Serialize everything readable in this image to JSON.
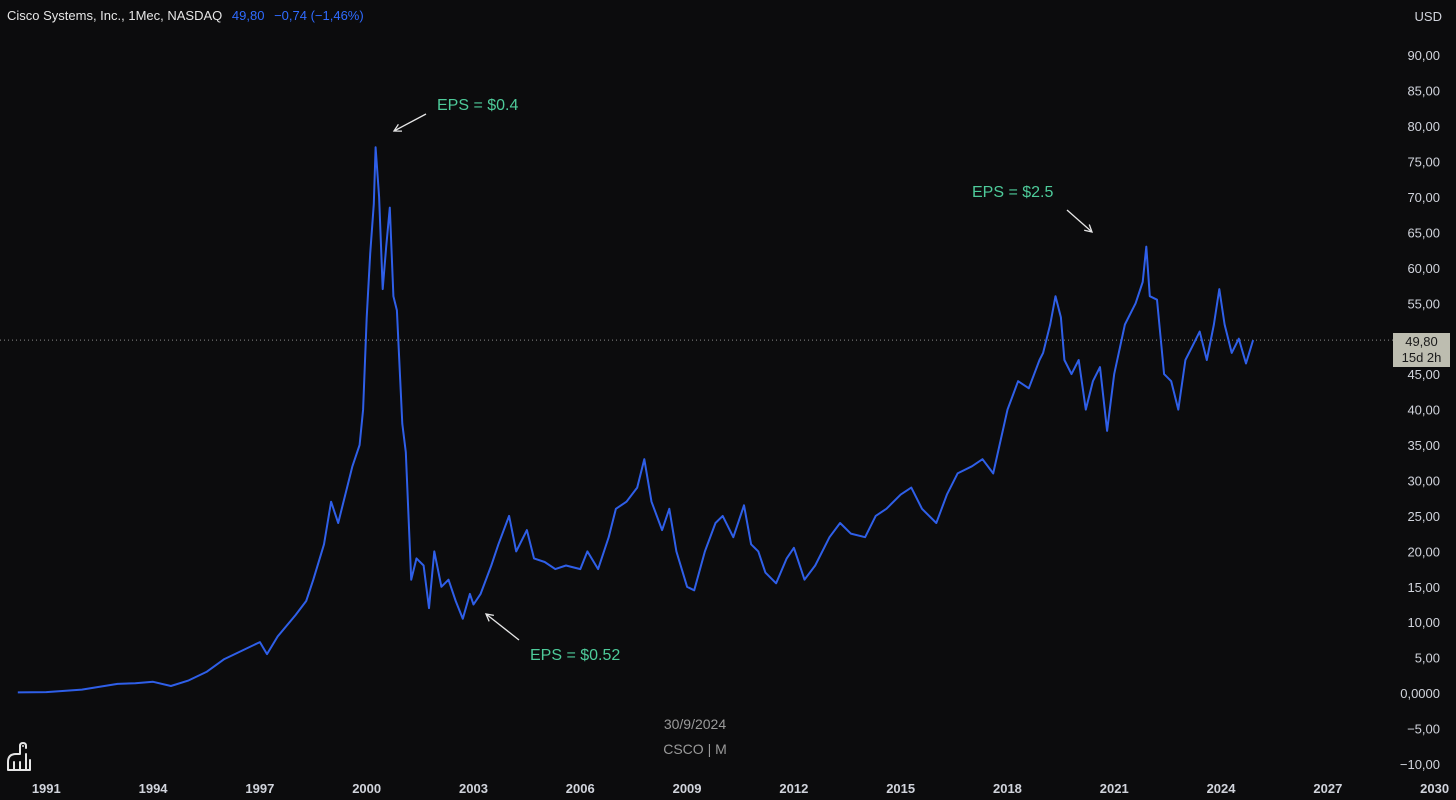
{
  "legend": {
    "symbol": "Cisco Systems, Inc., 1Mec, NASDAQ",
    "last": "49,80",
    "change": "−0,74 (−1,46%)"
  },
  "currency": "USD",
  "price_tag": {
    "value": "49,80",
    "countdown": "15d 2h"
  },
  "watermark": {
    "date": "30/9/2024",
    "symbol": "CSCO | M"
  },
  "colors": {
    "line": "#2f5fe8",
    "annotation": "#4ecb9a",
    "background": "#0c0c0d",
    "axis_text": "#d1d4dc"
  },
  "chart_data": {
    "type": "line",
    "title": "",
    "xlabel": "",
    "ylabel": "",
    "x_ticks": [
      "1991",
      "1994",
      "1997",
      "2000",
      "2003",
      "2006",
      "2009",
      "2012",
      "2015",
      "2018",
      "2021",
      "2024",
      "2027",
      "2030"
    ],
    "y_ticks": [
      "90,00",
      "85,00",
      "80,00",
      "75,00",
      "70,00",
      "65,00",
      "60,00",
      "55,00",
      "50,00",
      "45,00",
      "40,00",
      "35,00",
      "30,00",
      "25,00",
      "20,00",
      "15,00",
      "10,00",
      "5,00",
      "0,0000",
      "−5,00",
      "−10,00"
    ],
    "ylim": [
      -10,
      92
    ],
    "xlim": [
      1989.7,
      2030.6
    ],
    "last_value": 49.8,
    "series": [
      {
        "points": [
          [
            1990.2,
            0.1
          ],
          [
            1991.0,
            0.15
          ],
          [
            1992.0,
            0.5
          ],
          [
            1993.0,
            1.3
          ],
          [
            1993.5,
            1.4
          ],
          [
            1994.0,
            1.6
          ],
          [
            1994.5,
            1.0
          ],
          [
            1995.0,
            1.8
          ],
          [
            1995.5,
            3.0
          ],
          [
            1996.0,
            4.8
          ],
          [
            1996.5,
            6.0
          ],
          [
            1997.0,
            7.2
          ],
          [
            1997.2,
            5.5
          ],
          [
            1997.5,
            8.0
          ],
          [
            1998.0,
            11.0
          ],
          [
            1998.3,
            13.0
          ],
          [
            1998.5,
            16.0
          ],
          [
            1998.8,
            21.0
          ],
          [
            1999.0,
            27.0
          ],
          [
            1999.2,
            24.0
          ],
          [
            1999.4,
            28.0
          ],
          [
            1999.6,
            32.0
          ],
          [
            1999.8,
            35.0
          ],
          [
            1999.9,
            40.0
          ],
          [
            2000.0,
            53.0
          ],
          [
            2000.1,
            62.0
          ],
          [
            2000.2,
            69.0
          ],
          [
            2000.25,
            77.0
          ],
          [
            2000.35,
            70.0
          ],
          [
            2000.45,
            57.0
          ],
          [
            2000.55,
            63.0
          ],
          [
            2000.65,
            68.5
          ],
          [
            2000.75,
            56.0
          ],
          [
            2000.85,
            54.0
          ],
          [
            2001.0,
            38.0
          ],
          [
            2001.1,
            34.0
          ],
          [
            2001.25,
            16.0
          ],
          [
            2001.4,
            19.0
          ],
          [
            2001.6,
            18.0
          ],
          [
            2001.75,
            12.0
          ],
          [
            2001.9,
            20.0
          ],
          [
            2002.1,
            15.0
          ],
          [
            2002.3,
            16.0
          ],
          [
            2002.5,
            13.0
          ],
          [
            2002.7,
            10.5
          ],
          [
            2002.9,
            14.0
          ],
          [
            2003.0,
            12.5
          ],
          [
            2003.2,
            14.0
          ],
          [
            2003.5,
            18.0
          ],
          [
            2003.7,
            21.0
          ],
          [
            2004.0,
            25.0
          ],
          [
            2004.2,
            20.0
          ],
          [
            2004.5,
            23.0
          ],
          [
            2004.7,
            19.0
          ],
          [
            2005.0,
            18.5
          ],
          [
            2005.3,
            17.5
          ],
          [
            2005.6,
            18.0
          ],
          [
            2006.0,
            17.5
          ],
          [
            2006.2,
            20.0
          ],
          [
            2006.5,
            17.5
          ],
          [
            2006.8,
            22.0
          ],
          [
            2007.0,
            26.0
          ],
          [
            2007.3,
            27.0
          ],
          [
            2007.6,
            29.0
          ],
          [
            2007.8,
            33.0
          ],
          [
            2008.0,
            27.0
          ],
          [
            2008.3,
            23.0
          ],
          [
            2008.5,
            26.0
          ],
          [
            2008.7,
            20.0
          ],
          [
            2009.0,
            15.0
          ],
          [
            2009.2,
            14.5
          ],
          [
            2009.5,
            20.0
          ],
          [
            2009.8,
            24.0
          ],
          [
            2010.0,
            25.0
          ],
          [
            2010.3,
            22.0
          ],
          [
            2010.6,
            26.5
          ],
          [
            2010.8,
            21.0
          ],
          [
            2011.0,
            20.0
          ],
          [
            2011.2,
            17.0
          ],
          [
            2011.5,
            15.5
          ],
          [
            2011.8,
            19.0
          ],
          [
            2012.0,
            20.5
          ],
          [
            2012.3,
            16.0
          ],
          [
            2012.6,
            18.0
          ],
          [
            2013.0,
            22.0
          ],
          [
            2013.3,
            24.0
          ],
          [
            2013.6,
            22.5
          ],
          [
            2014.0,
            22.0
          ],
          [
            2014.3,
            25.0
          ],
          [
            2014.6,
            26.0
          ],
          [
            2015.0,
            28.0
          ],
          [
            2015.3,
            29.0
          ],
          [
            2015.6,
            26.0
          ],
          [
            2016.0,
            24.0
          ],
          [
            2016.3,
            28.0
          ],
          [
            2016.6,
            31.0
          ],
          [
            2017.0,
            32.0
          ],
          [
            2017.3,
            33.0
          ],
          [
            2017.6,
            31.0
          ],
          [
            2018.0,
            40.0
          ],
          [
            2018.3,
            44.0
          ],
          [
            2018.6,
            43.0
          ],
          [
            2018.9,
            47.0
          ],
          [
            2019.0,
            48.0
          ],
          [
            2019.2,
            52.0
          ],
          [
            2019.35,
            56.0
          ],
          [
            2019.5,
            53.0
          ],
          [
            2019.6,
            47.0
          ],
          [
            2019.8,
            45.0
          ],
          [
            2020.0,
            47.0
          ],
          [
            2020.2,
            40.0
          ],
          [
            2020.4,
            44.0
          ],
          [
            2020.6,
            46.0
          ],
          [
            2020.8,
            37.0
          ],
          [
            2021.0,
            45.0
          ],
          [
            2021.3,
            52.0
          ],
          [
            2021.6,
            55.0
          ],
          [
            2021.8,
            58.0
          ],
          [
            2021.9,
            63.0
          ],
          [
            2022.0,
            56.0
          ],
          [
            2022.2,
            55.5
          ],
          [
            2022.4,
            45.0
          ],
          [
            2022.6,
            44.0
          ],
          [
            2022.8,
            40.0
          ],
          [
            2023.0,
            47.0
          ],
          [
            2023.2,
            49.0
          ],
          [
            2023.4,
            51.0
          ],
          [
            2023.6,
            47.0
          ],
          [
            2023.8,
            52.0
          ],
          [
            2023.95,
            57.0
          ],
          [
            2024.1,
            52.0
          ],
          [
            2024.3,
            48.0
          ],
          [
            2024.5,
            50.0
          ],
          [
            2024.7,
            46.5
          ],
          [
            2024.9,
            49.8
          ]
        ]
      }
    ],
    "annotations": [
      {
        "text": "EPS = $0.4"
      },
      {
        "text": "EPS = $0.52"
      },
      {
        "text": "EPS = $2.5"
      }
    ]
  }
}
